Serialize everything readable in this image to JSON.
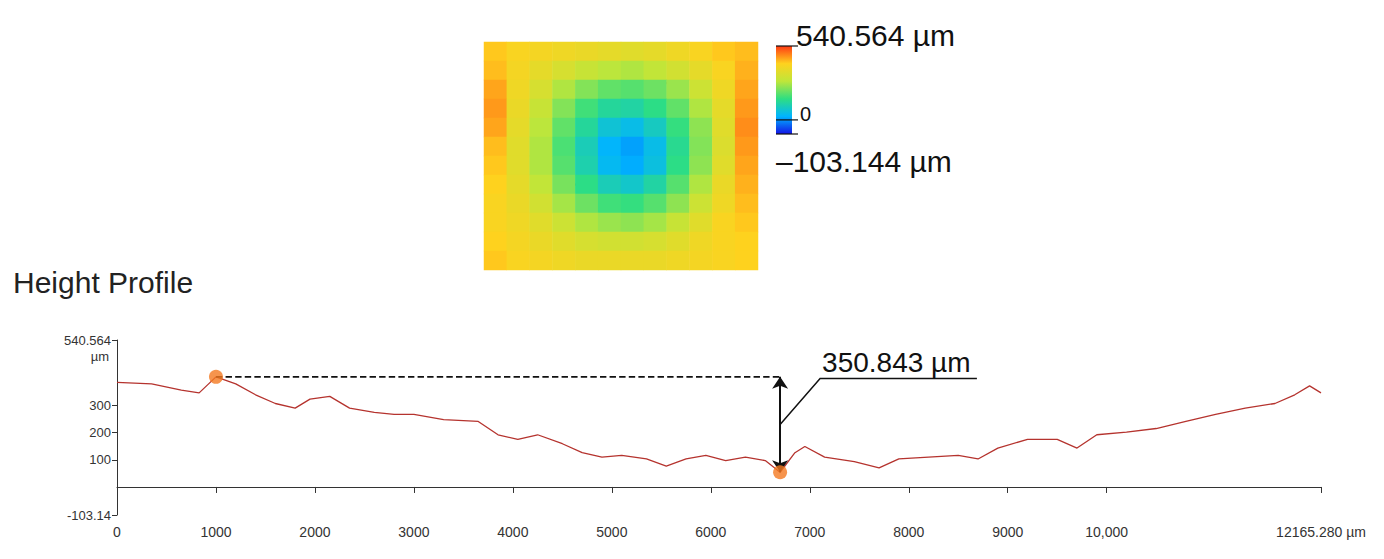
{
  "chart_data": [
    {
      "type": "heatmap",
      "tick_labels": false,
      "cells": [
        [
          420,
          400,
          390,
          380,
          370,
          360,
          350,
          360,
          380,
          400,
          420,
          430
        ],
        [
          430,
          390,
          360,
          330,
          300,
          280,
          270,
          290,
          320,
          360,
          400,
          440
        ],
        [
          450,
          380,
          330,
          270,
          230,
          200,
          190,
          210,
          250,
          310,
          380,
          450
        ],
        [
          460,
          370,
          300,
          230,
          170,
          130,
          120,
          150,
          200,
          270,
          360,
          460
        ],
        [
          450,
          360,
          280,
          200,
          130,
          70,
          50,
          90,
          160,
          240,
          350,
          470
        ],
        [
          430,
          350,
          270,
          180,
          100,
          30,
          10,
          50,
          140,
          230,
          340,
          460
        ],
        [
          420,
          350,
          270,
          190,
          110,
          40,
          20,
          60,
          150,
          240,
          350,
          450
        ],
        [
          410,
          360,
          290,
          220,
          150,
          100,
          80,
          120,
          190,
          270,
          370,
          440
        ],
        [
          400,
          370,
          320,
          260,
          210,
          170,
          160,
          190,
          240,
          310,
          380,
          430
        ],
        [
          400,
          380,
          350,
          310,
          270,
          250,
          240,
          260,
          300,
          350,
          400,
          420
        ],
        [
          410,
          390,
          370,
          350,
          330,
          320,
          320,
          330,
          350,
          380,
          400,
          410
        ],
        [
          420,
          400,
          390,
          380,
          370,
          370,
          370,
          370,
          380,
          390,
          400,
          410
        ]
      ],
      "colorbar": {
        "range": [
          -103.144,
          540.564
        ],
        "ticks": [
          {
            "value": 540.564,
            "label": "540.564 µm"
          },
          0,
          {
            "value": -103.144,
            "label": "–103.144 µm"
          }
        ],
        "colors": [
          "#1414e6",
          "#00b4ff",
          "#2ede82",
          "#bfe63a",
          "#ffd21e",
          "#ff3a14"
        ]
      }
    },
    {
      "type": "line",
      "title": "Height Profile",
      "y_label": "µm",
      "color": "#b5332e",
      "grid": false,
      "x": [
        0,
        350,
        650,
        830,
        1000,
        1200,
        1400,
        1600,
        1800,
        1950,
        2150,
        2350,
        2600,
        2800,
        3000,
        3300,
        3650,
        3850,
        4050,
        4250,
        4500,
        4700,
        4900,
        5100,
        5350,
        5550,
        5750,
        5950,
        6150,
        6350,
        6550,
        6700,
        6850,
        6950,
        7150,
        7450,
        7700,
        7900,
        8200,
        8500,
        8700,
        8900,
        9200,
        9500,
        9700,
        9900,
        10200,
        10500,
        10800,
        11100,
        11400,
        11700,
        11900,
        12050,
        12165.28
      ],
      "values": [
        385,
        379,
        356,
        346,
        405,
        379,
        339,
        307,
        290,
        323,
        333,
        290,
        274,
        267,
        267,
        248,
        241,
        192,
        175,
        192,
        159,
        126,
        110,
        116,
        103,
        77,
        103,
        116,
        97,
        110,
        97,
        54.157,
        126,
        149,
        110,
        93,
        70,
        103,
        110,
        116,
        103,
        143,
        175,
        175,
        143,
        192,
        202,
        215,
        241,
        267,
        290,
        307,
        339,
        372,
        346
      ],
      "xlim": [
        0,
        12165.28
      ],
      "xticks": [
        0,
        1000,
        2000,
        3000,
        4000,
        5000,
        6000,
        7000,
        8000,
        9000,
        {
          "value": 10000,
          "label": "10,000"
        },
        {
          "value": 12165.28,
          "label": "12165.280 µm"
        }
      ],
      "ylim": [
        -103.14,
        540.564
      ],
      "yticks": [
        -103.14,
        100,
        200,
        300,
        540.564
      ],
      "annotation": {
        "text": "350.843 µm",
        "color": "#f47920",
        "from": {
          "x": 1000,
          "y": 405
        },
        "to": {
          "x": 6700,
          "y": 54.157
        }
      }
    }
  ]
}
